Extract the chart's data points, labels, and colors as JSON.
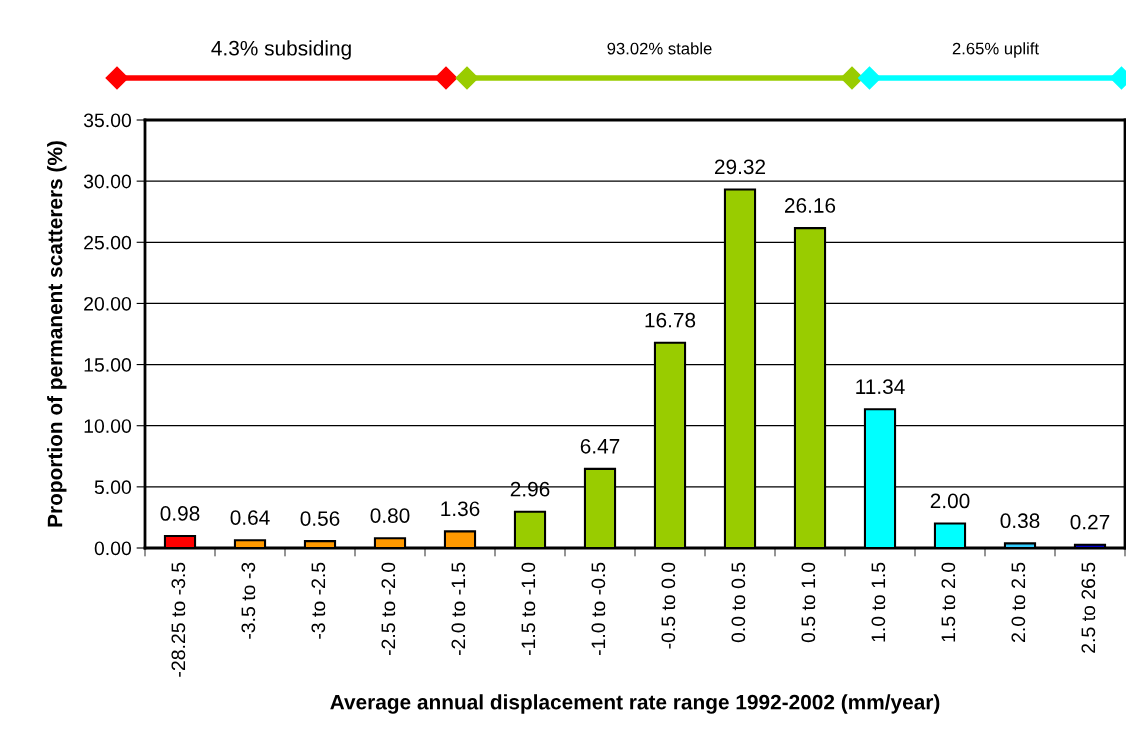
{
  "chart_data": {
    "type": "bar",
    "xlabel": "Average annual displacement rate range 1992-2002 (mm/year)",
    "ylabel": "Proportion of permanent scatterers (%)",
    "categories": [
      "-28.25 to -3.5",
      "-3.5 to -3",
      "-3 to -2.5",
      "-2.5 to -2.0",
      "-2.0 to -1.5",
      "-1.5 to -1.0",
      "-1.0 to -0.5",
      "-0.5 to 0.0",
      "0.0 to 0.5",
      "0.5 to 1.0",
      "1.0 to 1.5",
      "1.5 to 2.0",
      "2.0 to 2.5",
      "2.5 to 26.5"
    ],
    "values": [
      0.98,
      0.64,
      0.56,
      0.8,
      1.36,
      2.96,
      6.47,
      16.78,
      29.32,
      26.16,
      11.34,
      2.0,
      0.38,
      0.27
    ],
    "value_labels": [
      "0.98",
      "0.64",
      "0.56",
      "0.80",
      "1.36",
      "2.96",
      "6.47",
      "16.78",
      "29.32",
      "26.16",
      "11.34",
      "2.00",
      "0.38",
      "0.27"
    ],
    "colors": [
      "#ff0000",
      "#ff9900",
      "#ff9900",
      "#ff9900",
      "#ff9900",
      "#99cc00",
      "#99cc00",
      "#99cc00",
      "#99cc00",
      "#99cc00",
      "#00ffff",
      "#00ffff",
      "#33ccff",
      "#0000cc"
    ],
    "ylim": [
      0,
      35
    ],
    "yticks": [
      {
        "value": 0,
        "label": "0.00"
      },
      {
        "value": 5,
        "label": "5.00"
      },
      {
        "value": 10,
        "label": "10.00"
      },
      {
        "value": 15,
        "label": "15.00"
      },
      {
        "value": 20,
        "label": "20.00"
      },
      {
        "value": 25,
        "label": "25.00"
      },
      {
        "value": 30,
        "label": "30.00"
      },
      {
        "value": 35,
        "label": "35.00"
      }
    ],
    "grid": "y",
    "annotations": [
      "4.3% subsiding",
      "93.02% stable",
      "2.65% uplift"
    ]
  }
}
